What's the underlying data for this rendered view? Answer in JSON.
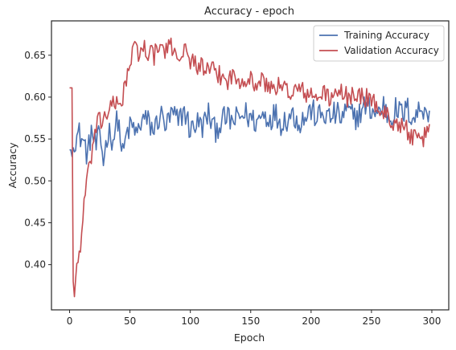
{
  "chart_data": {
    "type": "line",
    "title": "Accuracy - epoch",
    "xlabel": "Epoch",
    "ylabel": "Accuracy",
    "xlim": [
      -15,
      314
    ],
    "ylim": [
      0.346,
      0.691
    ],
    "xticks": [
      0,
      50,
      100,
      150,
      200,
      250,
      300
    ],
    "yticks": [
      0.4,
      0.45,
      0.5,
      0.55,
      0.6,
      0.65
    ],
    "ytick_labels": [
      "0.40",
      "0.45",
      "0.50",
      "0.55",
      "0.60",
      "0.65"
    ],
    "grid": false,
    "legend_position": "top-right",
    "series": [
      {
        "name": "Training Accuracy",
        "color": "#4c72b0",
        "keypoints": [
          [
            0,
            0.537
          ],
          [
            2,
            0.529
          ],
          [
            4,
            0.55
          ],
          [
            8,
            0.556
          ],
          [
            12,
            0.545
          ],
          [
            15,
            0.53
          ],
          [
            18,
            0.56
          ],
          [
            22,
            0.54
          ],
          [
            25,
            0.555
          ],
          [
            28,
            0.525
          ],
          [
            32,
            0.56
          ],
          [
            36,
            0.55
          ],
          [
            40,
            0.575
          ],
          [
            44,
            0.53
          ],
          [
            48,
            0.56
          ],
          [
            52,
            0.565
          ],
          [
            56,
            0.555
          ],
          [
            60,
            0.575
          ],
          [
            65,
            0.57
          ],
          [
            70,
            0.56
          ],
          [
            75,
            0.58
          ],
          [
            80,
            0.565
          ],
          [
            85,
            0.58
          ],
          [
            90,
            0.57
          ],
          [
            95,
            0.585
          ],
          [
            100,
            0.56
          ],
          [
            105,
            0.57
          ],
          [
            110,
            0.565
          ],
          [
            115,
            0.58
          ],
          [
            120,
            0.56
          ],
          [
            125,
            0.57
          ],
          [
            130,
            0.575
          ],
          [
            135,
            0.57
          ],
          [
            140,
            0.575
          ],
          [
            145,
            0.58
          ],
          [
            150,
            0.575
          ],
          [
            155,
            0.57
          ],
          [
            160,
            0.58
          ],
          [
            165,
            0.575
          ],
          [
            170,
            0.58
          ],
          [
            175,
            0.57
          ],
          [
            180,
            0.575
          ],
          [
            185,
            0.58
          ],
          [
            190,
            0.57
          ],
          [
            195,
            0.575
          ],
          [
            200,
            0.585
          ],
          [
            205,
            0.575
          ],
          [
            210,
            0.58
          ],
          [
            215,
            0.575
          ],
          [
            220,
            0.58
          ],
          [
            225,
            0.575
          ],
          [
            230,
            0.585
          ],
          [
            235,
            0.575
          ],
          [
            240,
            0.58
          ],
          [
            245,
            0.59
          ],
          [
            250,
            0.585
          ],
          [
            255,
            0.58
          ],
          [
            260,
            0.59
          ],
          [
            265,
            0.575
          ],
          [
            270,
            0.585
          ],
          [
            275,
            0.58
          ],
          [
            280,
            0.585
          ],
          [
            285,
            0.575
          ],
          [
            290,
            0.585
          ],
          [
            295,
            0.59
          ],
          [
            298,
            0.575
          ]
        ],
        "noise": 0.016
      },
      {
        "name": "Validation Accuracy",
        "color": "#c44e52",
        "keypoints": [
          [
            0,
            0.611
          ],
          [
            2,
            0.611
          ],
          [
            3,
            0.38
          ],
          [
            4,
            0.366
          ],
          [
            6,
            0.4
          ],
          [
            8,
            0.41
          ],
          [
            10,
            0.44
          ],
          [
            12,
            0.47
          ],
          [
            14,
            0.5
          ],
          [
            16,
            0.51
          ],
          [
            18,
            0.53
          ],
          [
            20,
            0.55
          ],
          [
            22,
            0.56
          ],
          [
            24,
            0.57
          ],
          [
            26,
            0.57
          ],
          [
            28,
            0.575
          ],
          [
            30,
            0.58
          ],
          [
            33,
            0.585
          ],
          [
            36,
            0.59
          ],
          [
            40,
            0.59
          ],
          [
            44,
            0.6
          ],
          [
            46,
            0.62
          ],
          [
            48,
            0.625
          ],
          [
            50,
            0.64
          ],
          [
            52,
            0.65
          ],
          [
            54,
            0.66
          ],
          [
            56,
            0.655
          ],
          [
            58,
            0.65
          ],
          [
            60,
            0.66
          ],
          [
            65,
            0.655
          ],
          [
            70,
            0.65
          ],
          [
            75,
            0.66
          ],
          [
            80,
            0.655
          ],
          [
            85,
            0.66
          ],
          [
            90,
            0.65
          ],
          [
            95,
            0.655
          ],
          [
            100,
            0.645
          ],
          [
            105,
            0.64
          ],
          [
            110,
            0.635
          ],
          [
            115,
            0.63
          ],
          [
            120,
            0.63
          ],
          [
            125,
            0.625
          ],
          [
            130,
            0.62
          ],
          [
            135,
            0.625
          ],
          [
            140,
            0.62
          ],
          [
            145,
            0.625
          ],
          [
            150,
            0.62
          ],
          [
            155,
            0.615
          ],
          [
            160,
            0.62
          ],
          [
            165,
            0.61
          ],
          [
            170,
            0.615
          ],
          [
            175,
            0.61
          ],
          [
            180,
            0.61
          ],
          [
            185,
            0.605
          ],
          [
            190,
            0.61
          ],
          [
            195,
            0.605
          ],
          [
            200,
            0.6
          ],
          [
            205,
            0.6
          ],
          [
            210,
            0.605
          ],
          [
            215,
            0.6
          ],
          [
            220,
            0.6
          ],
          [
            225,
            0.605
          ],
          [
            230,
            0.6
          ],
          [
            235,
            0.605
          ],
          [
            240,
            0.6
          ],
          [
            245,
            0.6
          ],
          [
            250,
            0.595
          ],
          [
            255,
            0.59
          ],
          [
            260,
            0.58
          ],
          [
            265,
            0.575
          ],
          [
            270,
            0.57
          ],
          [
            275,
            0.565
          ],
          [
            280,
            0.56
          ],
          [
            285,
            0.55
          ],
          [
            290,
            0.545
          ],
          [
            295,
            0.555
          ],
          [
            298,
            0.566
          ]
        ],
        "noise": 0.012
      }
    ]
  }
}
